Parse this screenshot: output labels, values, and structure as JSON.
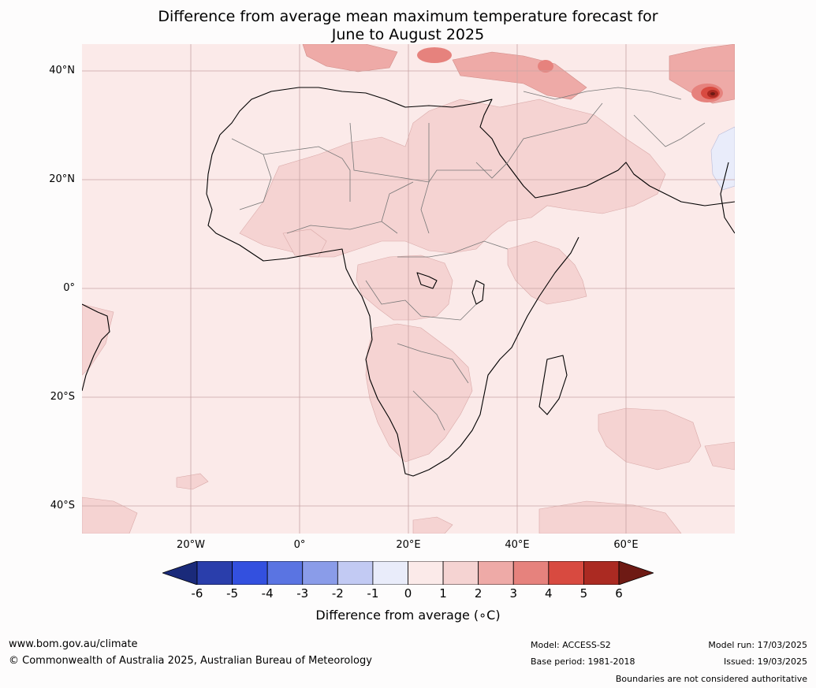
{
  "title_line1": "Difference from average mean maximum temperature forecast for",
  "title_line2": "June to August 2025",
  "lat_labels": [
    "40°N",
    "20°N",
    "0°",
    "20°S",
    "40°S"
  ],
  "lon_labels": [
    "20°W",
    "0°",
    "20°E",
    "40°E",
    "60°E"
  ],
  "colorbar": {
    "ticks": [
      "-6",
      "-5",
      "-4",
      "-3",
      "-2",
      "-1",
      "0",
      "1",
      "2",
      "3",
      "4",
      "5",
      "6"
    ],
    "colors": [
      "#1a2a7a",
      "#2a3eab",
      "#3350df",
      "#5a74e2",
      "#8a9ce9",
      "#c2caf3",
      "#e9ecfa",
      "#fbeae9",
      "#f5d3d2",
      "#eeaaa7",
      "#e6827d",
      "#d84a40",
      "#ab2a22",
      "#6e1a14"
    ],
    "label": "Difference from average (∘C)"
  },
  "footer": {
    "website": "www.bom.gov.au/climate",
    "copyright": "© Commonwealth of Australia 2025, Australian Bureau of Meteorology",
    "model": "Model: ACCESS-S2",
    "base_period": "Base period: 1981-2018",
    "model_run": "Model run: 17/03/2025",
    "issued": "Issued: 19/03/2025",
    "disclaimer": "Boundaries are not considered authoritative"
  }
}
